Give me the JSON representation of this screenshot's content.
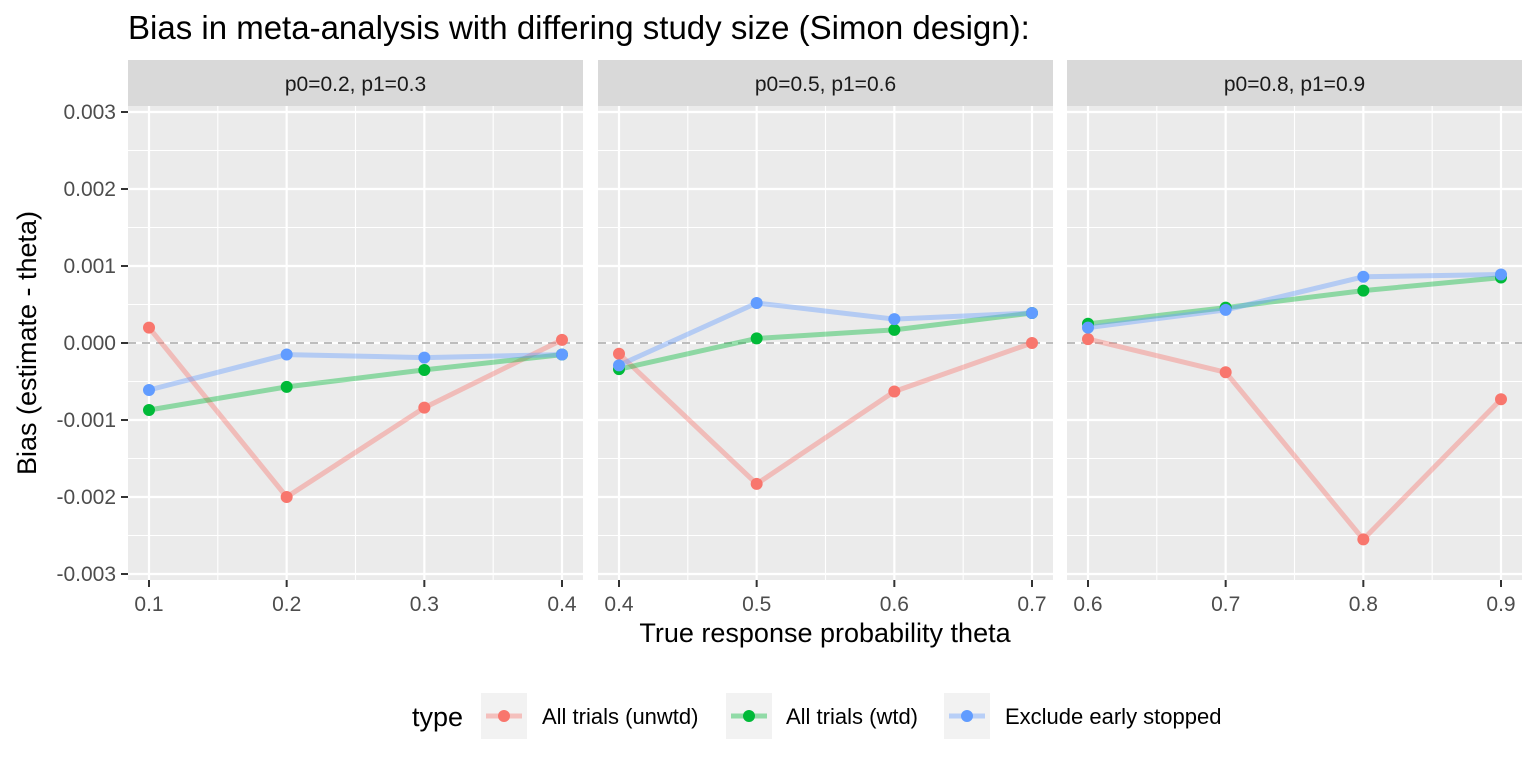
{
  "chart_data": {
    "type": "line",
    "title": "Bias in meta-analysis with differing study size (Simon design):",
    "xlabel": "True response probability theta",
    "ylabel": "Bias (estimate - theta)",
    "ylim": [
      -0.003,
      0.003
    ],
    "yticks": [
      "0.003",
      "0.002",
      "0.001",
      "0.000",
      "-0.001",
      "-0.002",
      "-0.003"
    ],
    "yticks_values": [
      0.003,
      0.002,
      0.001,
      0.0,
      -0.001,
      -0.002,
      -0.003
    ],
    "reference_line": 0,
    "grid": true,
    "legend": {
      "title": "type",
      "position": "bottom",
      "entries": [
        {
          "label": "All trials (unwtd)",
          "color": "#F8766D"
        },
        {
          "label": "All trials (wtd)",
          "color": "#00BA38"
        },
        {
          "label": "Exclude early stopped",
          "color": "#619CFF"
        }
      ]
    },
    "panels": [
      {
        "strip": "p0=0.2, p1=0.3",
        "x": [
          0.1,
          0.2,
          0.3,
          0.4
        ],
        "xticks": [
          "0.1",
          "0.2",
          "0.3",
          "0.4"
        ],
        "series": [
          {
            "name": "All trials (unwtd)",
            "values": [
              0.0002,
              -0.002,
              -0.00084,
              4e-05
            ]
          },
          {
            "name": "All trials (wtd)",
            "values": [
              -0.00087,
              -0.00057,
              -0.00035,
              -0.00015
            ]
          },
          {
            "name": "Exclude early stopped",
            "values": [
              -0.00061,
              -0.00015,
              -0.00019,
              -0.00015
            ]
          }
        ]
      },
      {
        "strip": "p0=0.5, p1=0.6",
        "x": [
          0.4,
          0.5,
          0.6,
          0.7
        ],
        "xticks": [
          "0.4",
          "0.5",
          "0.6",
          "0.7"
        ],
        "series": [
          {
            "name": "All trials (unwtd)",
            "values": [
              -0.00014,
              -0.00183,
              -0.00063,
              0.0
            ]
          },
          {
            "name": "All trials (wtd)",
            "values": [
              -0.00034,
              6e-05,
              0.00017,
              0.00039
            ]
          },
          {
            "name": "Exclude early stopped",
            "values": [
              -0.00029,
              0.00052,
              0.00031,
              0.00039
            ]
          }
        ]
      },
      {
        "strip": "p0=0.8, p1=0.9",
        "x": [
          0.6,
          0.7,
          0.8,
          0.9
        ],
        "xticks": [
          "0.6",
          "0.7",
          "0.8",
          "0.9"
        ],
        "series": [
          {
            "name": "All trials (unwtd)",
            "values": [
              5e-05,
              -0.00038,
              -0.00255,
              -0.00073
            ]
          },
          {
            "name": "All trials (wtd)",
            "values": [
              0.00025,
              0.00046,
              0.00068,
              0.00085
            ]
          },
          {
            "name": "Exclude early stopped",
            "values": [
              0.0002,
              0.00043,
              0.00086,
              0.00089
            ]
          }
        ]
      }
    ]
  }
}
